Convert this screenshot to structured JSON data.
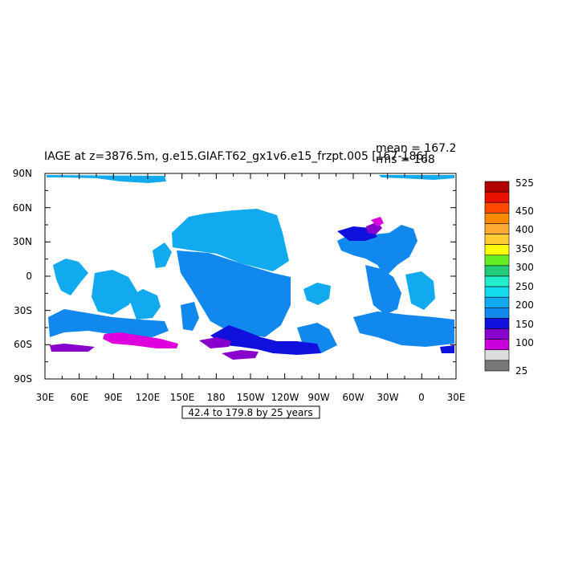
{
  "title": "IAGE at z=3876.5m, g.e15.GIAF.T62_gx1v6.e15_frzpt.005 [167-186]",
  "stats": {
    "mean": "mean = 167.2",
    "rms": "rms = 168"
  },
  "contour_info": "42.4 to 179.8 by 25 years",
  "axes": {
    "lon_ticks": [
      "30E",
      "60E",
      "90E",
      "120E",
      "150E",
      "180",
      "150W",
      "120W",
      "90W",
      "60W",
      "30W",
      "0",
      "30E"
    ],
    "lat_ticks": [
      "90N",
      "60N",
      "30N",
      "0",
      "30S",
      "60S",
      "90S"
    ]
  },
  "colorbar": {
    "labels": [
      "525",
      "450",
      "400",
      "350",
      "300",
      "250",
      "200",
      "150",
      "100",
      "25"
    ],
    "colors": [
      "#b00000",
      "#e81000",
      "#ff4a00",
      "#ff8a00",
      "#ffaa33",
      "#ffcc33",
      "#ffff00",
      "#66ee22",
      "#22cc77",
      "#22eecc",
      "#11ddee",
      "#11aaee",
      "#1188ee",
      "#1111dd",
      "#8800cc",
      "#cc00dd",
      "#dddddd",
      "#777777"
    ]
  },
  "region_colors": {
    "old": "#11aaee",
    "mid": "#1188ee",
    "young": "#1111dd",
    "younger": "#8800cc",
    "youngest": "#dd00dd"
  }
}
